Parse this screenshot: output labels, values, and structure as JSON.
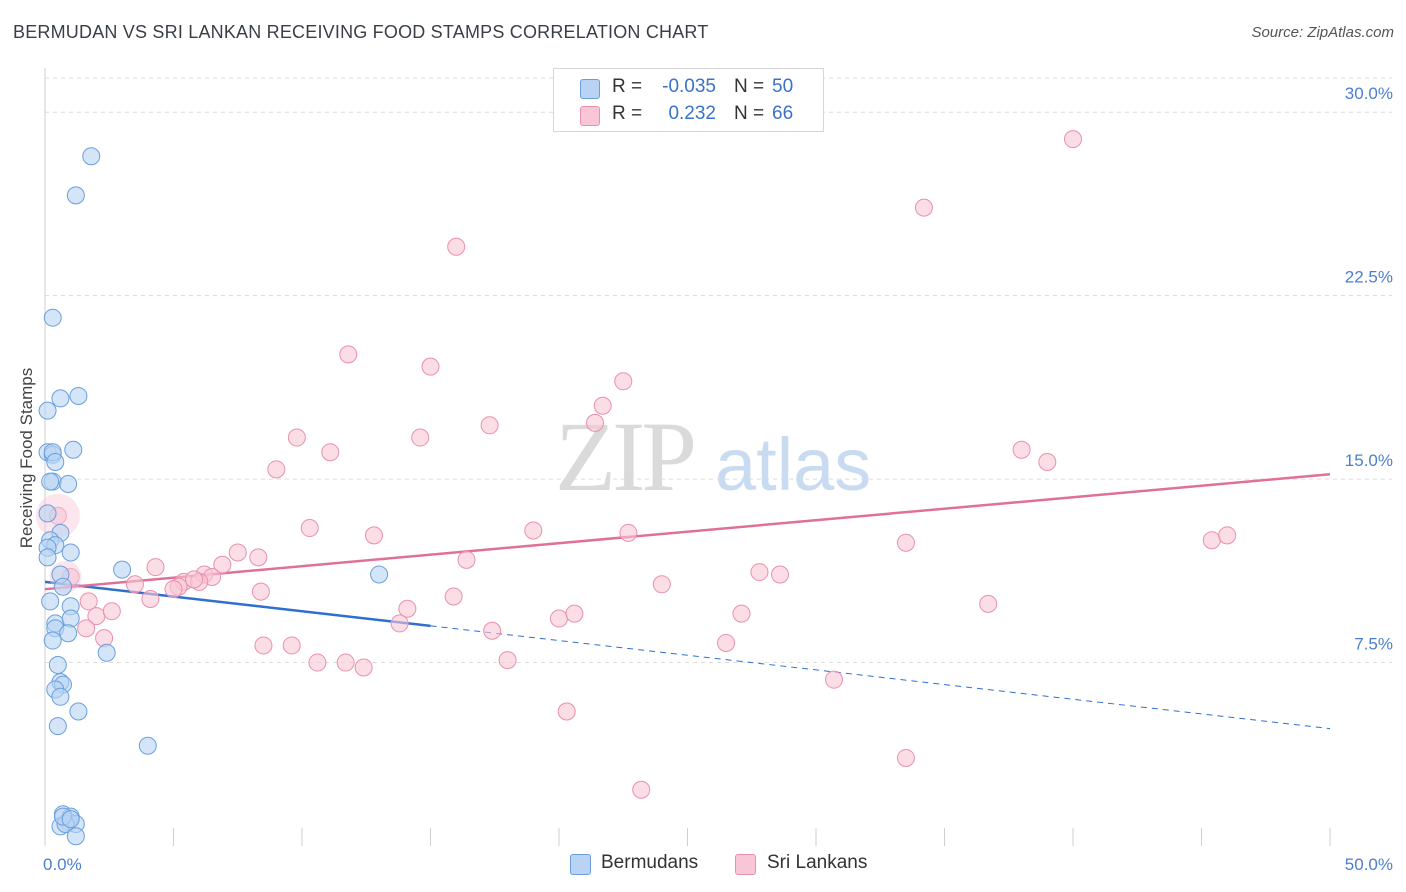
{
  "title": "BERMUDAN VS SRI LANKAN RECEIVING FOOD STAMPS CORRELATION CHART",
  "source": "Source: ZipAtlas.com",
  "watermark": {
    "zip": "ZIP",
    "atlas": "atlas"
  },
  "legend": {
    "rows": [
      {
        "r_label": "R =",
        "r_value": "-0.035",
        "n_label": "N =",
        "n_value": "50"
      },
      {
        "r_label": "R =",
        "r_value": "0.232",
        "n_label": "N =",
        "n_value": "66"
      }
    ]
  },
  "bottom_legend": [
    "Bermudans",
    "Sri Lankans"
  ],
  "colors": {
    "bermudan_fill": "#b8d3f3",
    "bermudan_stroke": "#6a9fdc",
    "bermudan_line": "#2f6fcf",
    "srilankan_fill": "#f8c6d6",
    "srilankan_stroke": "#e990ae",
    "srilankan_line": "#e0709a",
    "tick": "#4a7fcf",
    "grid": "#dcdcdc"
  },
  "chart_data": {
    "type": "scatter",
    "title": "BERMUDAN VS SRI LANKAN RECEIVING FOOD STAMPS CORRELATION CHART",
    "xlabel": "",
    "ylabel": "Receiving Food Stamps",
    "xlim": [
      0,
      50
    ],
    "ylim": [
      0,
      31.4
    ],
    "x_tick_labels": [
      "0.0%",
      "50.0%"
    ],
    "y_ticks": [
      7.5,
      15.0,
      22.5,
      30.0
    ],
    "y_tick_labels": [
      "7.5%",
      "15.0%",
      "22.5%",
      "30.0%"
    ],
    "series": [
      {
        "name": "Bermudans",
        "r": -0.035,
        "n": 50,
        "trend": {
          "x0": 0,
          "y0": 10.8,
          "x1": 15,
          "y1": 9.0,
          "dash_x1": 50,
          "dash_y1": 4.8
        },
        "points": [
          [
            1.8,
            28.2
          ],
          [
            1.2,
            26.6
          ],
          [
            0.3,
            21.6
          ],
          [
            0.6,
            18.3
          ],
          [
            1.3,
            18.4
          ],
          [
            0.1,
            17.8
          ],
          [
            0.1,
            16.1
          ],
          [
            0.3,
            16.0
          ],
          [
            0.3,
            16.1
          ],
          [
            1.1,
            16.2
          ],
          [
            0.4,
            15.7
          ],
          [
            0.3,
            14.9
          ],
          [
            0.2,
            14.9
          ],
          [
            0.9,
            14.8
          ],
          [
            0.1,
            13.6
          ],
          [
            0.6,
            12.8
          ],
          [
            0.2,
            12.5
          ],
          [
            0.4,
            12.3
          ],
          [
            0.1,
            12.2
          ],
          [
            1.0,
            12.0
          ],
          [
            0.1,
            11.8
          ],
          [
            0.6,
            11.1
          ],
          [
            3.0,
            11.3
          ],
          [
            13.0,
            11.1
          ],
          [
            0.7,
            10.6
          ],
          [
            1.0,
            9.8
          ],
          [
            0.2,
            10.0
          ],
          [
            0.4,
            9.1
          ],
          [
            1.0,
            9.3
          ],
          [
            0.4,
            8.9
          ],
          [
            0.9,
            8.7
          ],
          [
            0.3,
            8.4
          ],
          [
            2.4,
            7.9
          ],
          [
            0.5,
            7.4
          ],
          [
            0.6,
            6.7
          ],
          [
            0.7,
            6.6
          ],
          [
            0.4,
            6.4
          ],
          [
            0.6,
            6.1
          ],
          [
            1.3,
            5.5
          ],
          [
            0.5,
            4.9
          ],
          [
            4.0,
            4.1
          ],
          [
            0.7,
            1.3
          ],
          [
            1.0,
            1.2
          ],
          [
            0.9,
            1.0
          ],
          [
            1.2,
            0.9
          ],
          [
            0.6,
            0.8
          ],
          [
            0.8,
            0.9
          ],
          [
            1.2,
            0.4
          ],
          [
            0.7,
            1.2
          ],
          [
            1.0,
            1.1
          ]
        ]
      },
      {
        "name": "Sri Lankans",
        "r": 0.232,
        "n": 66,
        "trend": {
          "x0": 0,
          "y0": 10.5,
          "x1": 50,
          "y1": 15.2
        },
        "points": [
          [
            40.0,
            28.9
          ],
          [
            34.2,
            26.1
          ],
          [
            16.0,
            24.5
          ],
          [
            11.8,
            20.1
          ],
          [
            15.0,
            19.6
          ],
          [
            22.5,
            19.0
          ],
          [
            21.7,
            18.0
          ],
          [
            21.4,
            17.3
          ],
          [
            17.3,
            17.2
          ],
          [
            9.8,
            16.7
          ],
          [
            14.6,
            16.7
          ],
          [
            11.1,
            16.1
          ],
          [
            38.0,
            16.2
          ],
          [
            39.0,
            15.7
          ],
          [
            9.0,
            15.4
          ],
          [
            10.3,
            13.0
          ],
          [
            12.8,
            12.7
          ],
          [
            19.0,
            12.9
          ],
          [
            22.7,
            12.8
          ],
          [
            33.5,
            12.4
          ],
          [
            45.4,
            12.5
          ],
          [
            46.0,
            12.7
          ],
          [
            7.5,
            12.0
          ],
          [
            8.3,
            11.8
          ],
          [
            6.9,
            11.5
          ],
          [
            16.4,
            11.7
          ],
          [
            4.3,
            11.4
          ],
          [
            6.2,
            11.1
          ],
          [
            6.5,
            11.0
          ],
          [
            27.8,
            11.2
          ],
          [
            28.6,
            11.1
          ],
          [
            3.5,
            10.7
          ],
          [
            5.4,
            10.8
          ],
          [
            5.2,
            10.6
          ],
          [
            6.0,
            10.8
          ],
          [
            4.1,
            10.1
          ],
          [
            5.0,
            10.5
          ],
          [
            8.4,
            10.4
          ],
          [
            15.9,
            10.2
          ],
          [
            24.0,
            10.7
          ],
          [
            1.0,
            11.0
          ],
          [
            0.5,
            13.5
          ],
          [
            1.7,
            10.0
          ],
          [
            2.0,
            9.4
          ],
          [
            2.6,
            9.6
          ],
          [
            36.7,
            9.9
          ],
          [
            14.1,
            9.7
          ],
          [
            20.0,
            9.3
          ],
          [
            20.6,
            9.5
          ],
          [
            27.1,
            9.5
          ],
          [
            13.8,
            9.1
          ],
          [
            1.6,
            8.9
          ],
          [
            2.3,
            8.5
          ],
          [
            17.4,
            8.8
          ],
          [
            8.5,
            8.2
          ],
          [
            9.6,
            8.2
          ],
          [
            26.5,
            8.3
          ],
          [
            10.6,
            7.5
          ],
          [
            11.7,
            7.5
          ],
          [
            12.4,
            7.3
          ],
          [
            18.0,
            7.6
          ],
          [
            30.7,
            6.8
          ],
          [
            20.3,
            5.5
          ],
          [
            33.5,
            3.6
          ],
          [
            23.2,
            2.3
          ],
          [
            5.8,
            10.9
          ]
        ]
      }
    ]
  }
}
